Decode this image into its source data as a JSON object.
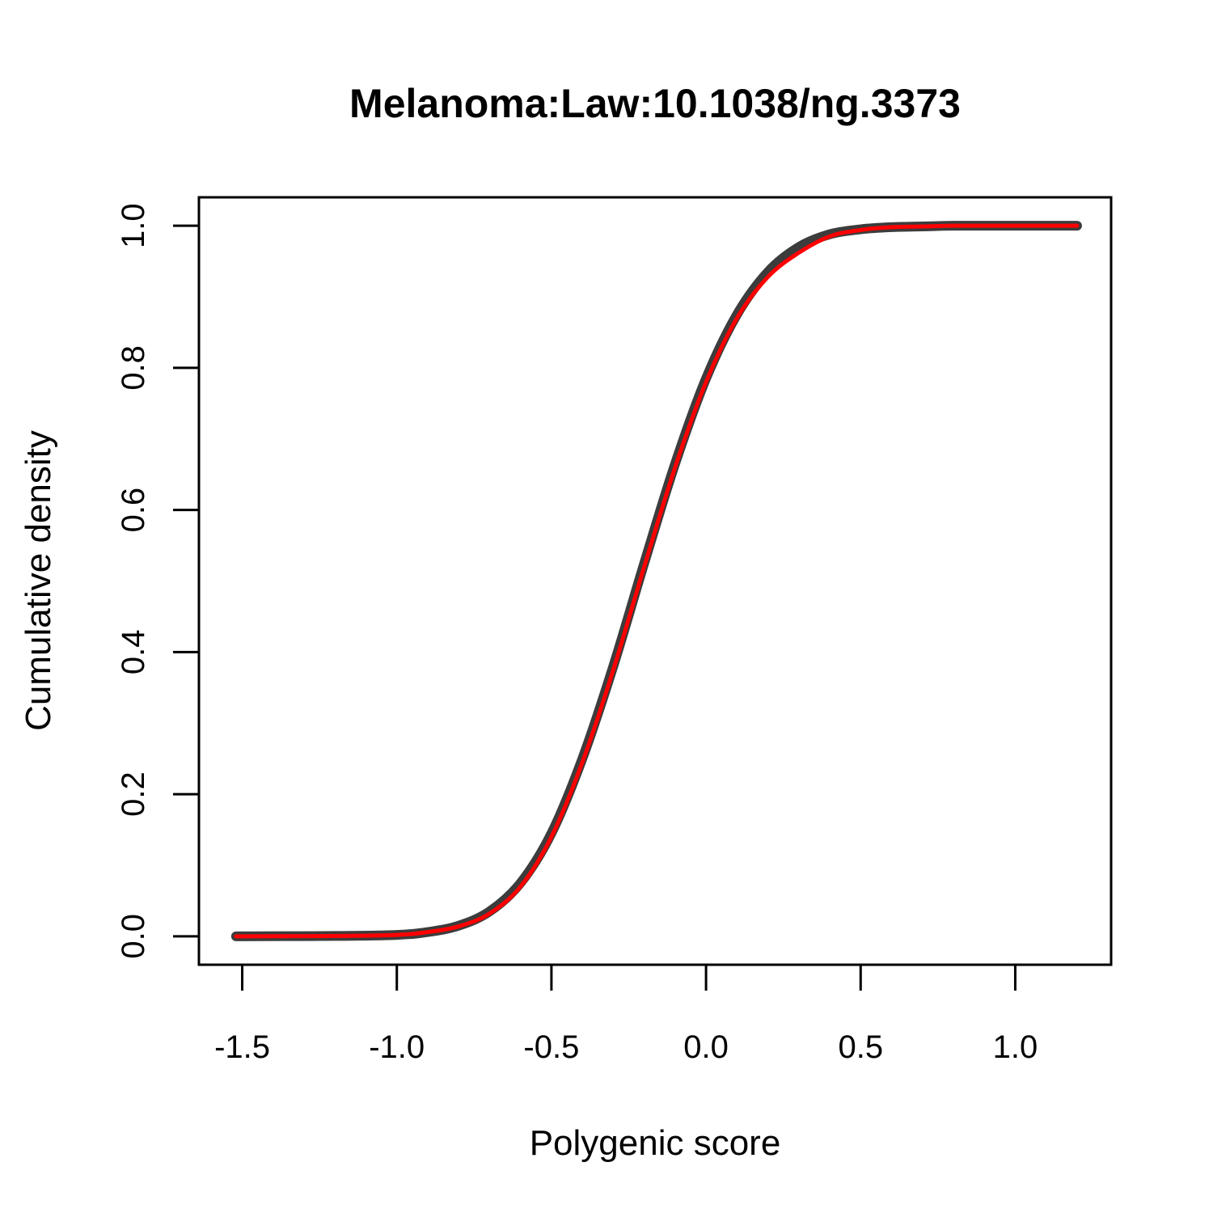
{
  "chart_data": {
    "type": "line",
    "title": "Melanoma:Law:10.1038/ng.3373",
    "xlabel": "Polygenic score",
    "ylabel": "Cumulative density",
    "xlim": [
      -1.64,
      1.31
    ],
    "ylim": [
      -0.04,
      1.04
    ],
    "x_ticks": [
      "-1.5",
      "-1.0",
      "-0.5",
      "0.0",
      "0.5",
      "1.0"
    ],
    "y_ticks": [
      "0.0",
      "0.2",
      "0.4",
      "0.6",
      "0.8",
      "1.0"
    ],
    "grid": false,
    "legend": "none",
    "series": [
      {
        "color": "#1a1a1a",
        "x": [
          -1.52,
          -1.2,
          -1.0,
          -0.9,
          -0.8,
          -0.7,
          -0.6,
          -0.5,
          -0.4,
          -0.3,
          -0.2,
          -0.1,
          0.0,
          0.1,
          0.2,
          0.3,
          0.4,
          0.5,
          0.6,
          0.7,
          0.8,
          1.0,
          1.2
        ],
        "y": [
          0.0,
          0.0005,
          0.002,
          0.006,
          0.015,
          0.035,
          0.075,
          0.145,
          0.25,
          0.38,
          0.525,
          0.665,
          0.785,
          0.875,
          0.935,
          0.97,
          0.988,
          0.995,
          0.998,
          0.999,
          1.0,
          1.0,
          1.0
        ]
      },
      {
        "color": "#ff0000",
        "x": [
          -1.52,
          -1.2,
          -1.0,
          -0.9,
          -0.8,
          -0.7,
          -0.6,
          -0.5,
          -0.4,
          -0.3,
          -0.2,
          -0.1,
          0.0,
          0.1,
          0.2,
          0.3,
          0.4,
          0.5,
          0.6,
          0.7,
          0.8,
          1.0,
          1.2
        ],
        "y": [
          0.0,
          0.0005,
          0.002,
          0.006,
          0.014,
          0.032,
          0.07,
          0.14,
          0.245,
          0.375,
          0.52,
          0.66,
          0.78,
          0.87,
          0.928,
          0.962,
          0.985,
          0.994,
          0.998,
          0.999,
          1.0,
          1.0,
          1.0
        ]
      }
    ]
  }
}
